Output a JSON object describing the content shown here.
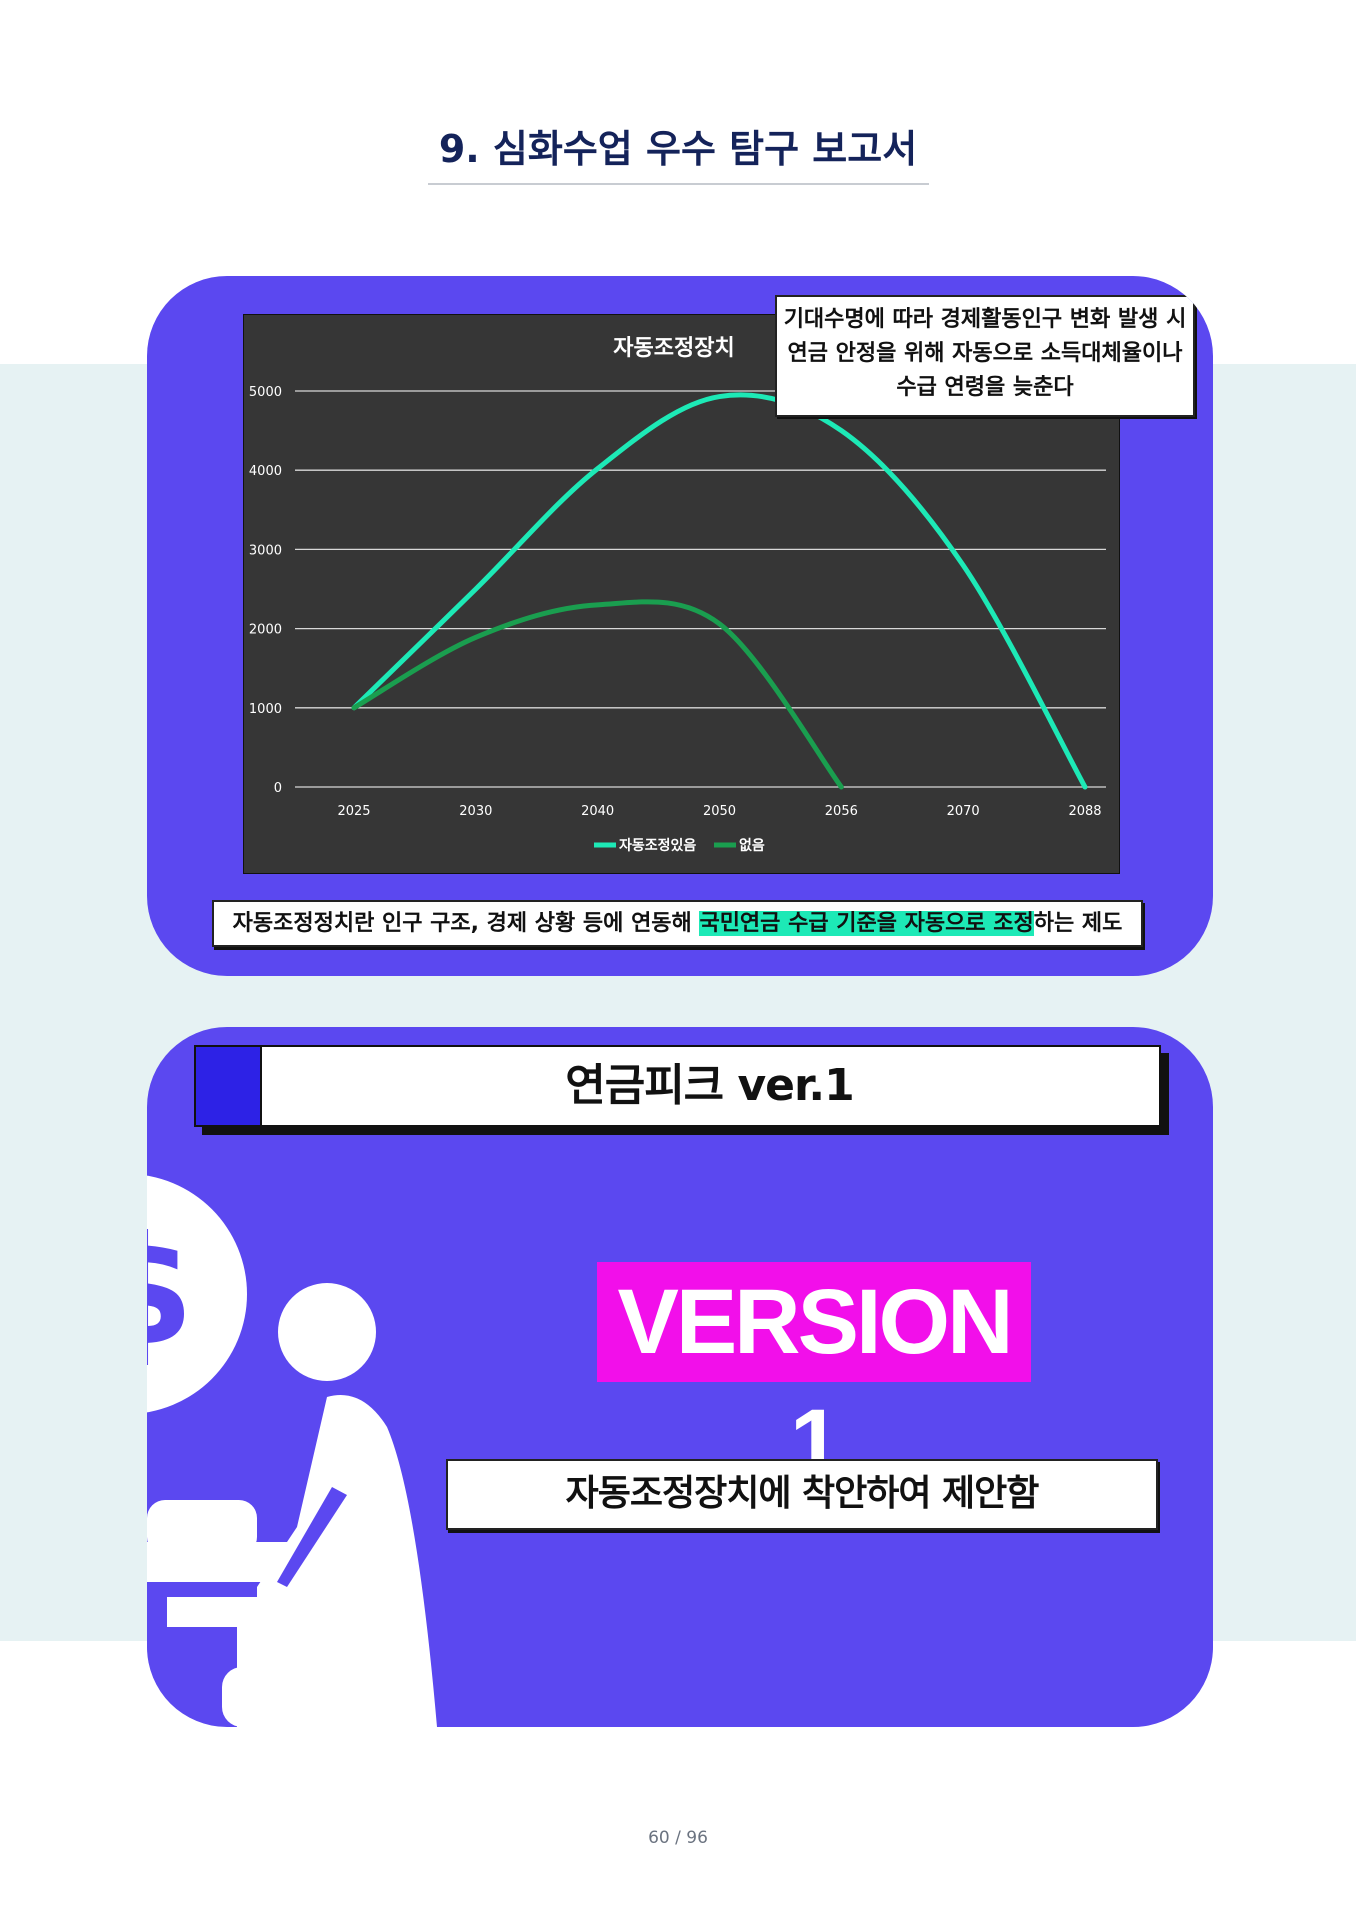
{
  "page": {
    "title": "9. 심화수업 우수 탐구 보고서",
    "page_number": "60 / 96"
  },
  "card1": {
    "callout_lines": [
      "기대수명에 따라 경제활동인구 변화 발생 시",
      "연금 안정을 위해 자동으로 소득대체율이나",
      "수급 연령을 늦춘다"
    ],
    "caption_before": "자동조정정치란 인구 구조, 경제 상황 등에 연동해 ",
    "caption_highlight": "국민연금 수급 기준을 자동으로 조정",
    "caption_after": "하는 제도",
    "highlight_color": "#1de9b6"
  },
  "card2": {
    "title": "연금피크 ver.1",
    "version_label": "VERSION 1",
    "subtitle": "자동조정장치에 착안하여 제안함",
    "icons": [
      "dollar-coin-icon",
      "person-at-desk-icon"
    ]
  },
  "colors": {
    "card_bg": "#5b48f0",
    "chart_bg": "#363636",
    "version_bg": "#f20fea",
    "band": "#e6f2f3"
  },
  "chart_data": {
    "type": "line",
    "title": "자동조정장치",
    "categories": [
      "2025",
      "2030",
      "2040",
      "2050",
      "2056",
      "2070",
      "2088"
    ],
    "y_ticks": [
      "0",
      "1000",
      "2000",
      "3000",
      "4000",
      "5000"
    ],
    "ylim": [
      0,
      5000
    ],
    "grid": true,
    "legend_position": "bottom",
    "smooth": true,
    "series": [
      {
        "name": "자동조정있음",
        "color": "#1de9b6",
        "values": [
          1000,
          2500,
          4020,
          4930,
          4500,
          2800,
          0
        ]
      },
      {
        "name": "없음",
        "color": "#1a9e4f",
        "values": [
          1000,
          1890,
          2300,
          2060,
          0,
          null,
          null
        ]
      }
    ]
  }
}
